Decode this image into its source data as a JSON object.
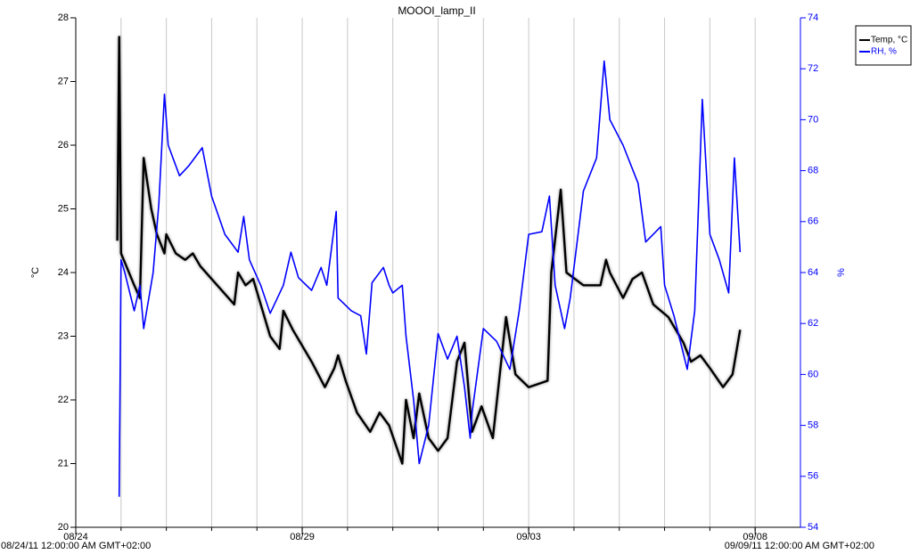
{
  "chart_data": {
    "type": "line",
    "title": "MOOOI_lamp_II",
    "y_label": "°C",
    "y2_label": "%",
    "start_label": "08/24/11 12:00:00 AM GMT+02:00",
    "end_label": "09/09/11 12:00:00 AM GMT+02:00",
    "xlim": [
      "2011-08-24T00:00",
      "2011-09-09T00:00"
    ],
    "xticks": [
      {
        "value": "2011-08-24T00:00",
        "label": "08/24"
      },
      {
        "value": "2011-08-29T00:00",
        "label": "08/29"
      },
      {
        "value": "2011-09-03T00:00",
        "label": "09/03"
      },
      {
        "value": "2011-09-08T00:00",
        "label": "09/08"
      }
    ],
    "xgrid": [
      "2011-08-25T00:00",
      "2011-08-26T00:00",
      "2011-08-27T00:00",
      "2011-08-28T00:00",
      "2011-08-29T00:00",
      "2011-08-30T00:00",
      "2011-08-31T00:00",
      "2011-09-01T00:00",
      "2011-09-02T00:00",
      "2011-09-03T00:00",
      "2011-09-04T00:00",
      "2011-09-05T00:00",
      "2011-09-06T00:00",
      "2011-09-07T00:00",
      "2011-09-08T00:00"
    ],
    "ylim": [
      20,
      28
    ],
    "yticks": [
      20,
      21,
      22,
      23,
      24,
      25,
      26,
      27,
      28
    ],
    "y2lim": [
      54,
      74
    ],
    "y2ticks": [
      54,
      56,
      58,
      60,
      62,
      64,
      66,
      68,
      70,
      72,
      74
    ],
    "y2_color": "#0000ff",
    "series": [
      {
        "name": "Temp, °C",
        "color": "#000000",
        "x": [
          "2011-08-24T22:00",
          "2011-08-24T23:00",
          "2011-08-25T00:00",
          "2011-08-25T07:00",
          "2011-08-25T10:00",
          "2011-08-25T12:00",
          "2011-08-25T16:00",
          "2011-08-25T19:00",
          "2011-08-25T23:00",
          "2011-08-26T00:00",
          "2011-08-26T05:00",
          "2011-08-26T10:00",
          "2011-08-26T14:00",
          "2011-08-26T18:00",
          "2011-08-27T00:00",
          "2011-08-27T12:00",
          "2011-08-27T14:00",
          "2011-08-27T18:00",
          "2011-08-27T22:00",
          "2011-08-28T07:00",
          "2011-08-28T12:00",
          "2011-08-28T14:00",
          "2011-08-28T19:00",
          "2011-08-29T05:00",
          "2011-08-29T12:00",
          "2011-08-29T17:00",
          "2011-08-29T19:00",
          "2011-08-29T23:00",
          "2011-08-30T05:00",
          "2011-08-30T12:00",
          "2011-08-30T17:00",
          "2011-08-30T22:00",
          "2011-08-31T05:00",
          "2011-08-31T07:00",
          "2011-08-31T11:00",
          "2011-08-31T14:00",
          "2011-08-31T19:00",
          "2011-09-01T00:00",
          "2011-09-01T05:00",
          "2011-09-01T10:00",
          "2011-09-01T14:00",
          "2011-09-01T18:00",
          "2011-09-01T23:00",
          "2011-09-02T05:00",
          "2011-09-02T12:00",
          "2011-09-02T17:00",
          "2011-09-03T00:00",
          "2011-09-03T10:00",
          "2011-09-03T12:00",
          "2011-09-03T17:00",
          "2011-09-03T20:00",
          "2011-09-04T05:00",
          "2011-09-04T14:00",
          "2011-09-04T17:00",
          "2011-09-04T19:00",
          "2011-09-05T02:00",
          "2011-09-05T07:00",
          "2011-09-05T12:00",
          "2011-09-05T18:00",
          "2011-09-06T02:00",
          "2011-09-06T10:00",
          "2011-09-06T14:00",
          "2011-09-06T19:00",
          "2011-09-07T00:00",
          "2011-09-07T07:00",
          "2011-09-07T12:00",
          "2011-09-07T16:00"
        ],
        "values": [
          24.5,
          27.7,
          24.3,
          23.8,
          23.6,
          25.8,
          25.0,
          24.6,
          24.3,
          24.6,
          24.3,
          24.2,
          24.3,
          24.1,
          23.9,
          23.5,
          24.0,
          23.8,
          23.9,
          23.0,
          22.8,
          23.4,
          23.1,
          22.6,
          22.2,
          22.5,
          22.7,
          22.3,
          21.8,
          21.5,
          21.8,
          21.6,
          21.0,
          22.0,
          21.4,
          22.1,
          21.4,
          21.2,
          21.4,
          22.6,
          22.9,
          21.5,
          21.9,
          21.4,
          23.3,
          22.4,
          22.2,
          22.3,
          24.0,
          25.3,
          24.0,
          23.8,
          23.8,
          24.2,
          24.0,
          23.6,
          23.9,
          24.0,
          23.5,
          23.3,
          22.9,
          22.6,
          22.7,
          22.5,
          22.2,
          22.4,
          23.1
        ]
      },
      {
        "name": "RH, %",
        "color": "#0000ff",
        "axis": "y2",
        "x": [
          "2011-08-24T23:00",
          "2011-08-25T00:00",
          "2011-08-25T02:00",
          "2011-08-25T07:00",
          "2011-08-25T10:00",
          "2011-08-25T12:00",
          "2011-08-25T17:00",
          "2011-08-25T20:00",
          "2011-08-25T23:00",
          "2011-08-26T01:00",
          "2011-08-26T07:00",
          "2011-08-26T12:00",
          "2011-08-26T19:00",
          "2011-08-27T00:00",
          "2011-08-27T07:00",
          "2011-08-27T14:00",
          "2011-08-27T17:00",
          "2011-08-27T20:00",
          "2011-08-28T02:00",
          "2011-08-28T07:00",
          "2011-08-28T14:00",
          "2011-08-28T18:00",
          "2011-08-28T22:00",
          "2011-08-29T05:00",
          "2011-08-29T10:00",
          "2011-08-29T13:00",
          "2011-08-29T18:00",
          "2011-08-29T19:00",
          "2011-08-30T02:00",
          "2011-08-30T07:00",
          "2011-08-30T10:00",
          "2011-08-30T13:00",
          "2011-08-30T19:00",
          "2011-08-30T22:00",
          "2011-08-31T00:00",
          "2011-08-31T05:00",
          "2011-08-31T07:00",
          "2011-08-31T11:00",
          "2011-08-31T14:00",
          "2011-08-31T19:00",
          "2011-09-01T00:00",
          "2011-09-01T05:00",
          "2011-09-01T10:00",
          "2011-09-01T14:00",
          "2011-09-01T17:00",
          "2011-09-01T18:00",
          "2011-09-02T00:00",
          "2011-09-02T07:00",
          "2011-09-02T14:00",
          "2011-09-02T19:00",
          "2011-09-03T00:00",
          "2011-09-03T07:00",
          "2011-09-03T11:00",
          "2011-09-03T14:00",
          "2011-09-03T19:00",
          "2011-09-03T22:00",
          "2011-09-04T05:00",
          "2011-09-04T12:00",
          "2011-09-04T16:00",
          "2011-09-04T19:00",
          "2011-09-05T02:00",
          "2011-09-05T10:00",
          "2011-09-05T14:00",
          "2011-09-05T22:00",
          "2011-09-06T00:00",
          "2011-09-06T05:00",
          "2011-09-06T12:00",
          "2011-09-06T16:00",
          "2011-09-06T20:00",
          "2011-09-07T00:00",
          "2011-09-07T05:00",
          "2011-09-07T10:00",
          "2011-09-07T13:00",
          "2011-09-07T16:00"
        ],
        "values": [
          55.2,
          64.5,
          64.0,
          62.5,
          63.5,
          61.8,
          64.0,
          66.7,
          71.0,
          69.0,
          67.8,
          68.2,
          68.9,
          67.0,
          65.5,
          64.8,
          66.2,
          64.5,
          63.5,
          62.4,
          63.5,
          64.8,
          63.8,
          63.3,
          64.2,
          63.5,
          66.4,
          63.0,
          62.5,
          62.3,
          60.8,
          63.6,
          64.2,
          63.5,
          63.2,
          63.5,
          61.5,
          59.0,
          56.5,
          58.0,
          61.6,
          60.6,
          61.5,
          59.5,
          57.5,
          58.5,
          61.8,
          61.3,
          60.2,
          62.5,
          65.5,
          65.6,
          67.0,
          63.5,
          61.8,
          63.0,
          67.2,
          68.5,
          72.3,
          70.0,
          69.0,
          67.5,
          65.2,
          65.8,
          63.5,
          62.3,
          60.2,
          62.5,
          70.8,
          65.5,
          64.5,
          63.2,
          68.5,
          64.8
        ]
      }
    ]
  }
}
